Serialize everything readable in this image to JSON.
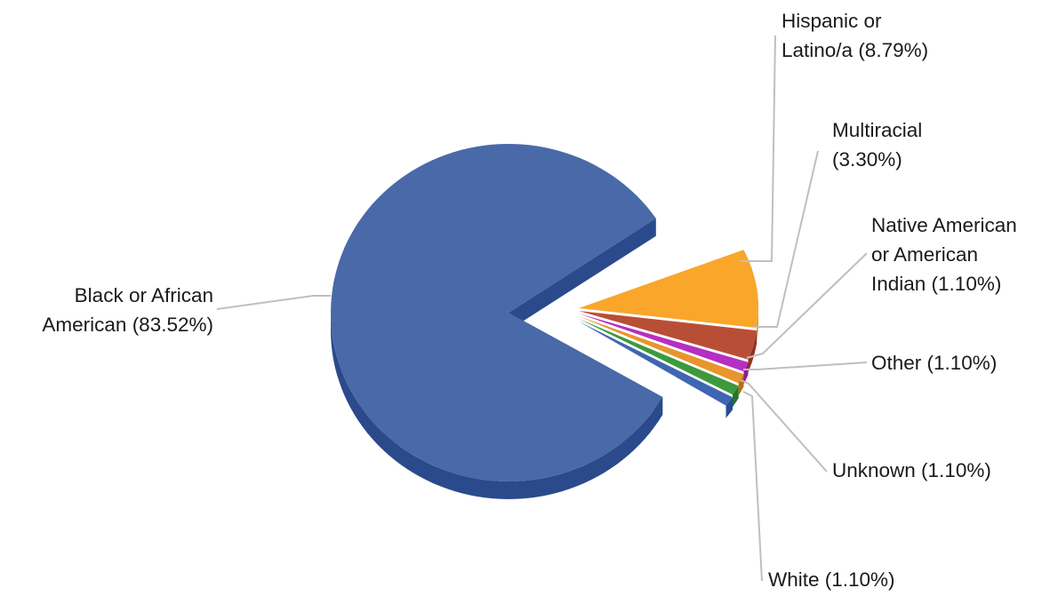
{
  "chart_data": {
    "type": "pie",
    "title": "",
    "style": "3d-exploded",
    "slices": [
      {
        "name": "Black or African American",
        "value": 83.52,
        "label_lines": [
          "Black or African",
          "American (83.52%)"
        ],
        "color": "#4a69a8",
        "side_color": "#2b4a8c"
      },
      {
        "name": "Hispanic or Latino/a",
        "value": 8.79,
        "label_lines": [
          "Hispanic or",
          "Latino/a (8.79%)"
        ],
        "color": "#f9a62b",
        "side_color": "#d9871c"
      },
      {
        "name": "Multiracial",
        "value": 3.3,
        "label_lines": [
          "Multiracial",
          "(3.30%)"
        ],
        "color": "#b94e36",
        "side_color": "#8f3220"
      },
      {
        "name": "Native American or American Indian",
        "value": 1.1,
        "label_lines": [
          "Native American",
          "or American",
          "Indian (1.10%)"
        ],
        "color": "#b62fc2",
        "side_color": "#8c1e97"
      },
      {
        "name": "Other",
        "value": 1.1,
        "label_lines": [
          "Other (1.10%)"
        ],
        "color": "#e8952c",
        "side_color": "#b96e14"
      },
      {
        "name": "Unknown",
        "value": 1.1,
        "label_lines": [
          "Unknown (1.10%)"
        ],
        "color": "#3c9a3c",
        "side_color": "#247624"
      },
      {
        "name": "White",
        "value": 1.1,
        "label_lines": [
          "White (1.10%)"
        ],
        "color": "#3f66b0",
        "side_color": "#254c96"
      }
    ]
  }
}
